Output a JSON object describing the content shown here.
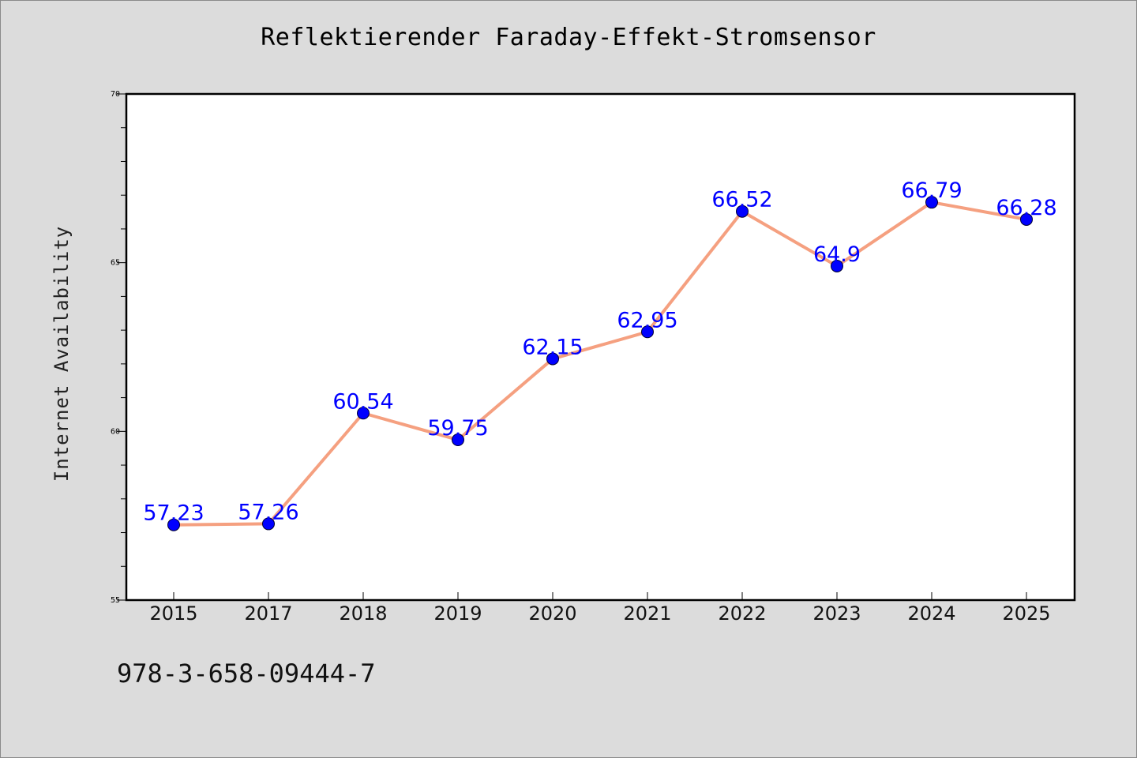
{
  "chart_data": {
    "type": "line",
    "title": "Reflektierender Faraday-Effekt-Stromsensor",
    "xlabel": "",
    "ylabel": "Internet Availability",
    "categories": [
      "2015",
      "2017",
      "2018",
      "2019",
      "2020",
      "2021",
      "2022",
      "2023",
      "2024",
      "2025"
    ],
    "series": [
      {
        "values": [
          57.23,
          57.26,
          60.54,
          59.75,
          62.15,
          62.95,
          66.52,
          64.9,
          66.79,
          66.28
        ],
        "data_labels": [
          "57.23",
          "57.26",
          "60.54",
          "59.75",
          "62.15",
          "62.95",
          "66.52",
          "64.9",
          "66.79",
          "66.28"
        ],
        "line_color": "#f5a080",
        "marker_color": "#0000ff"
      }
    ],
    "ylim": [
      55,
      70
    ],
    "y_ticks": [
      55,
      60,
      65,
      70
    ],
    "y_minor_step": 1,
    "grid": false,
    "legend": "none",
    "label_color": "#0000ff"
  },
  "footer": {
    "isbn": "978-3-658-09444-7"
  },
  "colors": {
    "background": "#dcdcdc",
    "plot_background": "#ffffff"
  }
}
